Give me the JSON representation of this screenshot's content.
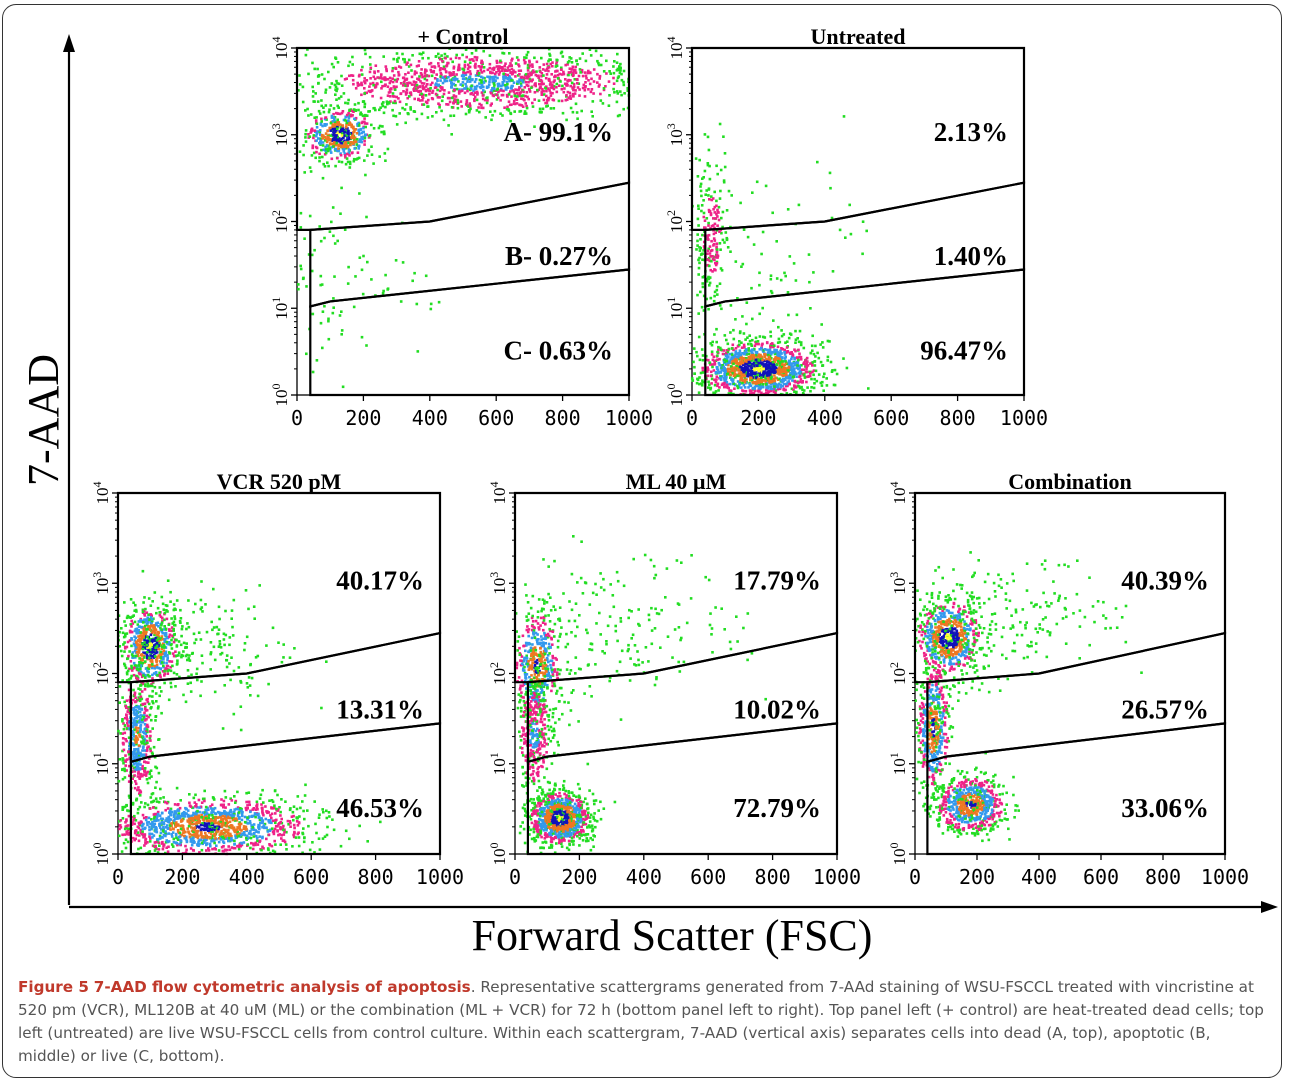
{
  "figure": {
    "ylabel": "7-AAD",
    "xlabel": "Forward Scatter (FSC)"
  },
  "caption": {
    "label": "Figure 5",
    "title": "7-AAD flow cytometric analysis of apoptosis",
    "body": ". Representative scattergrams generated from 7-AAd staining of WSU-FSCCL treated with vincristine at 520 pm (VCR), ML120B at 40 uM (ML) or the combination (ML + VCR) for 72 h (bottom panel left to right). Top panel left (+ control) are heat-treated dead cells; top left (untreated) are live WSU-FSCCL cells from control culture. Within each scattergram, 7-AAD (vertical axis) separates cells into dead (A, top), apoptotic (B, middle) or live (C, bottom)."
  },
  "colors": {
    "density_levels": [
      "#22dd22",
      "#ee2288",
      "#3399ee",
      "#ee7722",
      "#1111bb",
      "#ffff33"
    ],
    "gate": "#000000"
  },
  "chart_data": [
    {
      "type": "scatter",
      "title": "+ Control",
      "xlim": [
        0,
        1000
      ],
      "ylim": [
        1,
        10000
      ],
      "yscale": "log",
      "xticks": [
        "0",
        "200",
        "400",
        "600",
        "800",
        "1000"
      ],
      "yticks": [
        "10^0",
        "10^1",
        "10^2",
        "10^3",
        "10^4"
      ],
      "gate_labels": [
        "A-  99.1%",
        "B-  0.27%",
        "C-  0.63%"
      ],
      "gates": [
        {
          "name": "A",
          "percent": 99.1
        },
        {
          "name": "B",
          "percent": 0.27
        },
        {
          "name": "C",
          "percent": 0.63
        }
      ],
      "populations": [
        {
          "x": 130,
          "y": 1000,
          "sx": 50,
          "sy": 0.15,
          "n": 500,
          "level": 5
        },
        {
          "x": 550,
          "y": 4000,
          "sx": 250,
          "sy": 0.18,
          "n": 1400,
          "level": 2
        },
        {
          "x": 120,
          "y": 20,
          "sx": 130,
          "sy": 0.55,
          "n": 110,
          "level": 0
        }
      ]
    },
    {
      "type": "scatter",
      "title": "Untreated",
      "xlim": [
        0,
        1000
      ],
      "ylim": [
        1,
        10000
      ],
      "yscale": "log",
      "xticks": [
        "0",
        "200",
        "400",
        "600",
        "800",
        "1000"
      ],
      "yticks": [
        "10^0",
        "10^1",
        "10^2",
        "10^3",
        "10^4"
      ],
      "gate_labels": [
        "2.13%",
        "1.40%",
        "96.47%"
      ],
      "gates": [
        {
          "name": "A",
          "percent": 2.13
        },
        {
          "name": "B",
          "percent": 1.4
        },
        {
          "name": "C",
          "percent": 96.47
        }
      ],
      "populations": [
        {
          "x": 200,
          "y": 2.0,
          "sx": 85,
          "sy": 0.16,
          "n": 1400,
          "level": 5
        },
        {
          "x": 60,
          "y": 70,
          "sx": 25,
          "sy": 0.45,
          "n": 220,
          "level": 1
        },
        {
          "x": 250,
          "y": 30,
          "sx": 150,
          "sy": 0.7,
          "n": 80,
          "level": 0
        }
      ]
    },
    {
      "type": "scatter",
      "title": "VCR 520 pM",
      "xlim": [
        0,
        1000
      ],
      "ylim": [
        1,
        10000
      ],
      "yscale": "log",
      "xticks": [
        "0",
        "200",
        "400",
        "600",
        "800",
        "1000"
      ],
      "yticks": [
        "10^0",
        "10^1",
        "10^2",
        "10^3",
        "10^4"
      ],
      "gate_labels": [
        "40.17%",
        "13.31%",
        "46.53%"
      ],
      "gates": [
        {
          "name": "A",
          "percent": 40.17
        },
        {
          "name": "B",
          "percent": 13.31
        },
        {
          "name": "C",
          "percent": 46.53
        }
      ],
      "populations": [
        {
          "x": 100,
          "y": 200,
          "sx": 40,
          "sy": 0.22,
          "n": 600,
          "level": 5
        },
        {
          "x": 60,
          "y": 20,
          "sx": 25,
          "sy": 0.35,
          "n": 500,
          "level": 3
        },
        {
          "x": 280,
          "y": 2.0,
          "sx": 150,
          "sy": 0.16,
          "n": 1300,
          "level": 4
        },
        {
          "x": 250,
          "y": 200,
          "sx": 120,
          "sy": 0.3,
          "n": 200,
          "level": 0
        }
      ]
    },
    {
      "type": "scatter",
      "title": "ML 40 µM",
      "xlim": [
        0,
        1000
      ],
      "ylim": [
        1,
        10000
      ],
      "yscale": "log",
      "xticks": [
        "0",
        "200",
        "400",
        "600",
        "800",
        "1000"
      ],
      "yticks": [
        "10^0",
        "10^1",
        "10^2",
        "10^3",
        "10^4"
      ],
      "gate_labels": [
        "17.79%",
        "10.02%",
        "72.79%"
      ],
      "gates": [
        {
          "name": "A",
          "percent": 17.79
        },
        {
          "name": "B",
          "percent": 10.02
        },
        {
          "name": "C",
          "percent": 72.79
        }
      ],
      "populations": [
        {
          "x": 140,
          "y": 2.5,
          "sx": 45,
          "sy": 0.14,
          "n": 1000,
          "level": 5
        },
        {
          "x": 70,
          "y": 120,
          "sx": 35,
          "sy": 0.3,
          "n": 500,
          "level": 4
        },
        {
          "x": 60,
          "y": 20,
          "sx": 25,
          "sy": 0.3,
          "n": 300,
          "level": 2
        },
        {
          "x": 300,
          "y": 300,
          "sx": 200,
          "sy": 0.45,
          "n": 200,
          "level": 0
        }
      ]
    },
    {
      "type": "scatter",
      "title": "Combination",
      "xlim": [
        0,
        1000
      ],
      "ylim": [
        1,
        10000
      ],
      "yscale": "log",
      "xticks": [
        "0",
        "200",
        "400",
        "600",
        "800",
        "1000"
      ],
      "yticks": [
        "10^0",
        "10^1",
        "10^2",
        "10^3",
        "10^4"
      ],
      "gate_labels": [
        "40.39%",
        "26.57%",
        "33.06%"
      ],
      "gates": [
        {
          "name": "A",
          "percent": 40.39
        },
        {
          "name": "B",
          "percent": 26.57
        },
        {
          "name": "C",
          "percent": 33.06
        }
      ],
      "populations": [
        {
          "x": 110,
          "y": 250,
          "sx": 50,
          "sy": 0.2,
          "n": 700,
          "level": 5
        },
        {
          "x": 60,
          "y": 25,
          "sx": 25,
          "sy": 0.35,
          "n": 500,
          "level": 4
        },
        {
          "x": 180,
          "y": 3.5,
          "sx": 55,
          "sy": 0.15,
          "n": 700,
          "level": 4
        },
        {
          "x": 300,
          "y": 400,
          "sx": 180,
          "sy": 0.35,
          "n": 200,
          "level": 0
        }
      ]
    }
  ]
}
